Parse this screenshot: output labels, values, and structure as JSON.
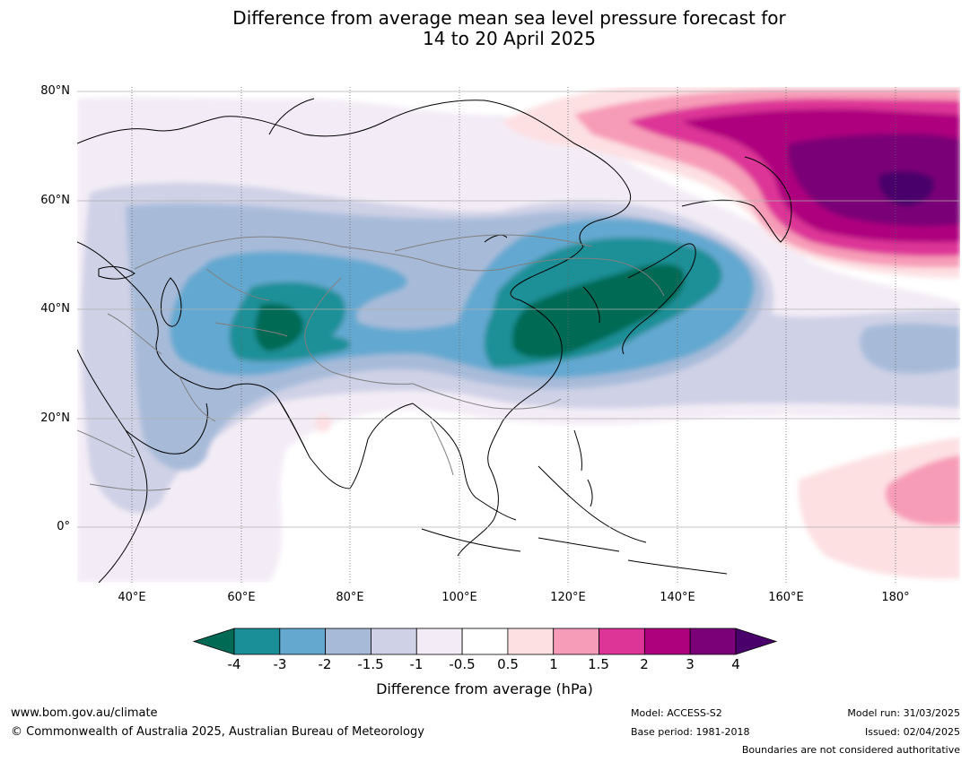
{
  "title": {
    "line1": "Difference from average mean sea level pressure forecast for",
    "line2": "14 to 20 April 2025"
  },
  "axes": {
    "lat_labels": [
      "80°N",
      "60°N",
      "40°N",
      "20°N",
      "0°"
    ],
    "lon_labels": [
      "40°E",
      "60°E",
      "80°E",
      "100°E",
      "120°E",
      "140°E",
      "160°E",
      "180°"
    ]
  },
  "colorbar": {
    "ticks": [
      "-4",
      "-3",
      "-2",
      "-1.5",
      "-1",
      "-0.5",
      "0.5",
      "1",
      "1.5",
      "2",
      "3",
      "4"
    ],
    "colors": [
      "#006a55",
      "#1a8f97",
      "#64a8d0",
      "#a7bbd9",
      "#cfd1e6",
      "#f3ecf6",
      "#ffffff",
      "#fde0e2",
      "#f79cb8",
      "#dd3497",
      "#ae017e",
      "#7a0177",
      "#49006a"
    ],
    "label": "Difference from average (hPa)"
  },
  "footer": {
    "website": "www.bom.gov.au/climate",
    "copyright": "© Commonwealth of Australia 2025, Australian Bureau of Meteorology",
    "model": "Model: ACCESS-S2",
    "base_period": "Base period: 1981-2018",
    "model_run": "Model run: 31/03/2025",
    "issued": "Issued: 02/04/2025",
    "boundaries_note": "Boundaries are not considered authoritative"
  }
}
